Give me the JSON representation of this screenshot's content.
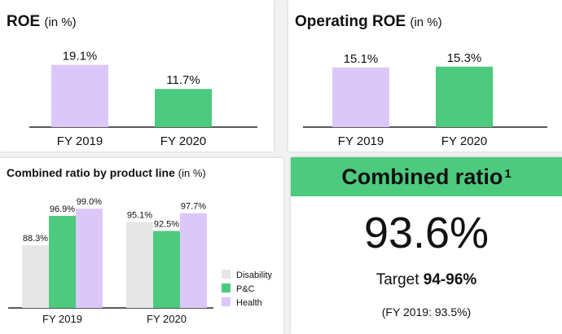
{
  "colors": {
    "lavender": "#dcc8f8",
    "green": "#4cca7d",
    "grey": "#e6e6e6",
    "axis": "#222222"
  },
  "roe": {
    "title": "ROE",
    "unit": "(in %)"
  },
  "operating_roe": {
    "title": "Operating ROE",
    "unit": "(in %)"
  },
  "combined_ratio_by_line": {
    "title": "Combined ratio by product line",
    "unit": "(in %)"
  },
  "combined_ratio": {
    "heading": "Combined ratio",
    "footnote": "1",
    "value": "93.6%",
    "target_label": "Target",
    "target_value": "94-96%",
    "previous": "(FY 2019: 93.5%)"
  },
  "chart_data": [
    {
      "type": "bar",
      "title": "ROE (in %)",
      "categories": [
        "FY 2019",
        "FY 2020"
      ],
      "values": [
        19.1,
        11.7
      ],
      "labels": [
        "19.1%",
        "11.7%"
      ],
      "colors": [
        "#dcc8f8",
        "#4cca7d"
      ],
      "ylim": [
        0,
        20
      ]
    },
    {
      "type": "bar",
      "title": "Operating ROE (in %)",
      "categories": [
        "FY 2019",
        "FY 2020"
      ],
      "values": [
        15.1,
        15.3
      ],
      "labels": [
        "15.1%",
        "15.3%"
      ],
      "colors": [
        "#dcc8f8",
        "#4cca7d"
      ],
      "ylim": [
        0,
        16.5
      ]
    },
    {
      "type": "bar",
      "title": "Combined ratio by product line (in %)",
      "categories": [
        "FY 2019",
        "FY 2020"
      ],
      "series": [
        {
          "name": "Disability",
          "values": [
            88.3,
            95.1
          ],
          "labels": [
            "88.3%",
            "95.1%"
          ],
          "color": "#e6e6e6"
        },
        {
          "name": "P&C",
          "values": [
            96.9,
            92.5
          ],
          "labels": [
            "96.9%",
            "92.5%"
          ],
          "color": "#4cca7d"
        },
        {
          "name": "Health",
          "values": [
            99.0,
            97.7
          ],
          "labels": [
            "99.0%",
            "97.7%"
          ],
          "color": "#dcc8f8"
        }
      ],
      "ylim": [
        70,
        100
      ],
      "legend": "right"
    }
  ]
}
